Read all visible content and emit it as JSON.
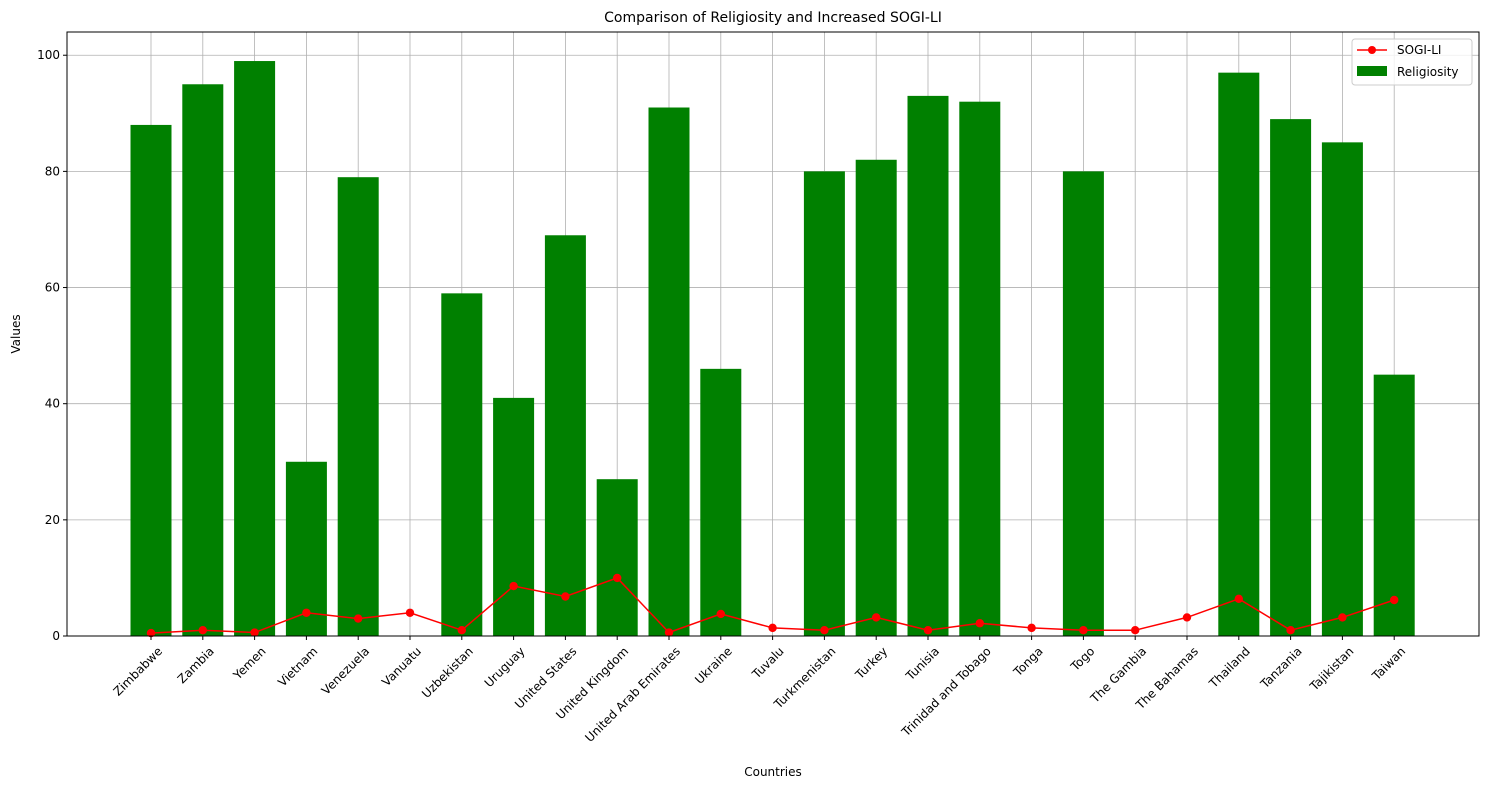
{
  "chart_data": {
    "type": "bar",
    "title": "Comparison of Religiosity and Increased SOGI-LI",
    "xlabel": "Countries",
    "ylabel": "Values",
    "ylim": [
      0,
      104
    ],
    "yticks": [
      0,
      20,
      40,
      60,
      80,
      100
    ],
    "grid": true,
    "legend_position": "top-right",
    "categories": [
      "Zimbabwe",
      "Zambia",
      "Yemen",
      "Vietnam",
      "Venezuela",
      "Vanuatu",
      "Uzbekistan",
      "Uruguay",
      "United States",
      "United Kingdom",
      "United Arab Emirates",
      "Ukraine",
      "Tuvalu",
      "Turkmenistan",
      "Turkey",
      "Tunisia",
      "Trinidad and Tobago",
      "Tonga",
      "Togo",
      "The Gambia",
      "The Bahamas",
      "Thailand",
      "Tanzania",
      "Tajikistan",
      "Taiwan"
    ],
    "series": [
      {
        "name": "Religiosity",
        "type": "bar",
        "color": "#008000",
        "values": [
          88,
          95,
          99,
          30,
          79,
          null,
          59,
          41,
          69,
          27,
          91,
          46,
          null,
          80,
          82,
          93,
          92,
          null,
          80,
          null,
          null,
          97,
          89,
          85,
          45
        ]
      },
      {
        "name": "SOGI-LI",
        "type": "line",
        "color": "#ff0000",
        "values": [
          0.5,
          1.0,
          0.6,
          4.0,
          3.0,
          4.0,
          1.0,
          8.6,
          6.8,
          10.0,
          0.6,
          3.8,
          1.4,
          1.0,
          3.2,
          1.0,
          2.2,
          1.4,
          1.0,
          1.0,
          3.2,
          6.4,
          1.0,
          3.2,
          6.2
        ]
      }
    ]
  }
}
